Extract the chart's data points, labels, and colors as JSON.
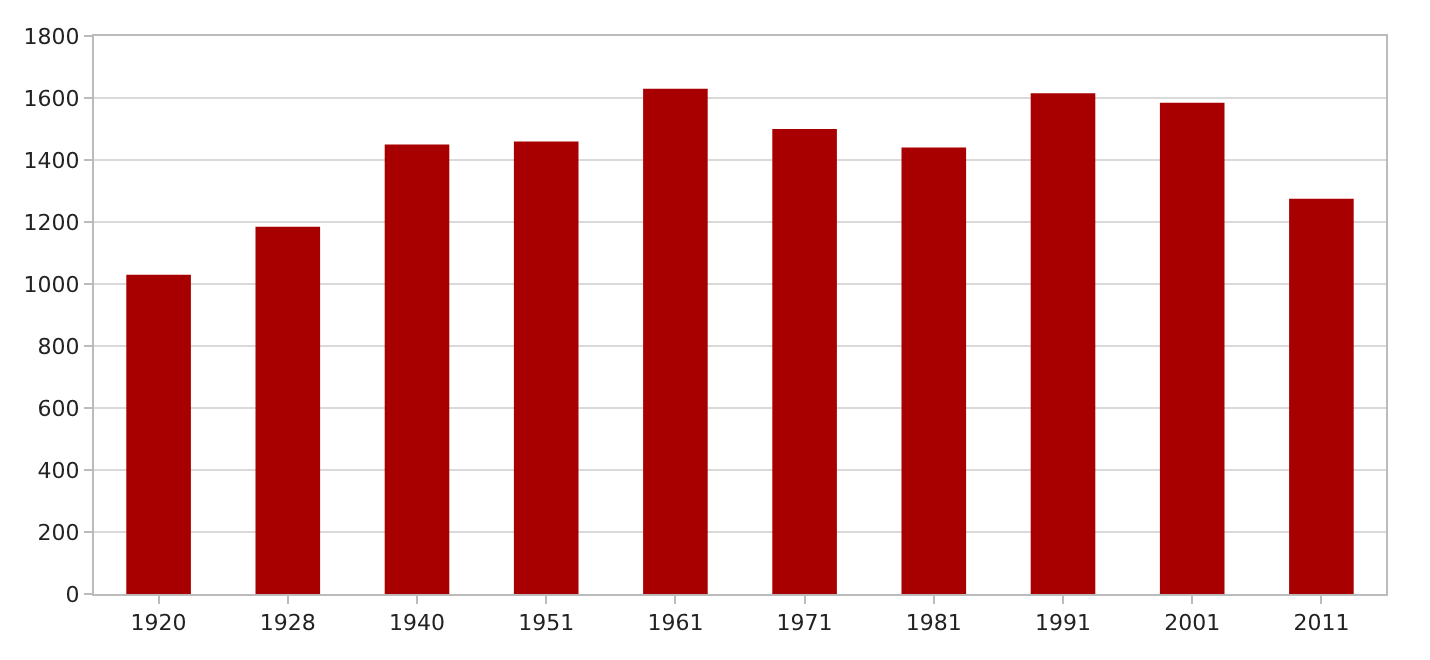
{
  "chart_data": {
    "type": "bar",
    "categories": [
      "1920",
      "1928",
      "1940",
      "1951",
      "1961",
      "1971",
      "1981",
      "1991",
      "2001",
      "2011"
    ],
    "values": [
      1030,
      1185,
      1450,
      1460,
      1630,
      1500,
      1440,
      1615,
      1585,
      1275
    ],
    "color": "#a80000",
    "ylim": [
      0,
      1800
    ],
    "yticks": [
      0,
      200,
      400,
      600,
      800,
      1000,
      1200,
      1400,
      1600,
      1800
    ],
    "grid": "y"
  }
}
